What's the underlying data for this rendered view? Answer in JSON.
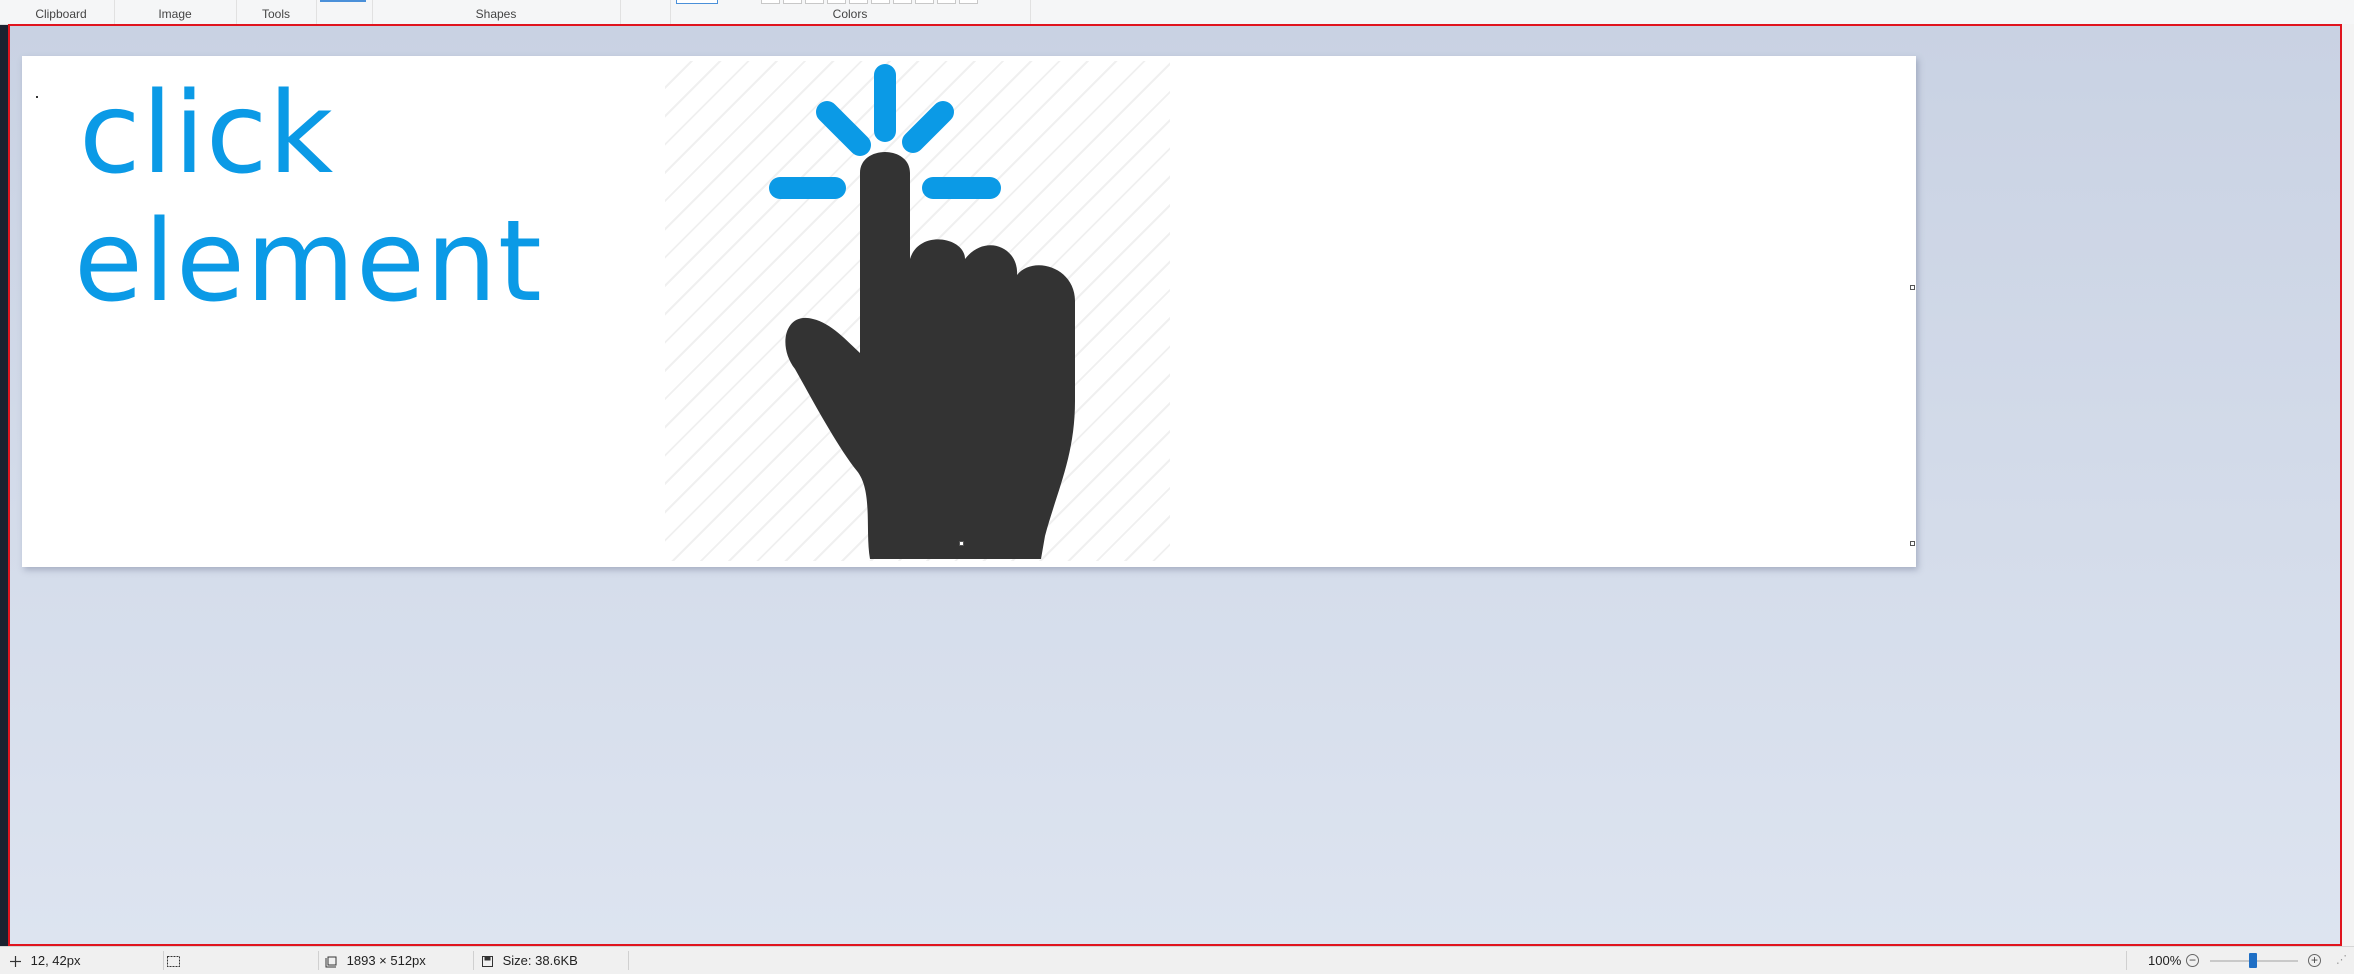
{
  "ribbon": {
    "groups": {
      "clipboard": "Clipboard",
      "image": "Image",
      "tools": "Tools",
      "shapes": "Shapes",
      "colors": "Colors"
    }
  },
  "canvas": {
    "line1": "click",
    "line2": "element",
    "colors": {
      "text": "#0b9ae6",
      "hand": "#333333",
      "spark": "#0b9ae6"
    },
    "image_icon": "pointing-hand-click-icon"
  },
  "status": {
    "cursor_position": "12, 42px",
    "image_dimensions": "1893 × 512px",
    "file_size": "Size: 38.6KB",
    "zoom": "100%"
  },
  "accent": {
    "selection_border": "#e0141e",
    "zoom_thumb": "#1f6fc5"
  }
}
